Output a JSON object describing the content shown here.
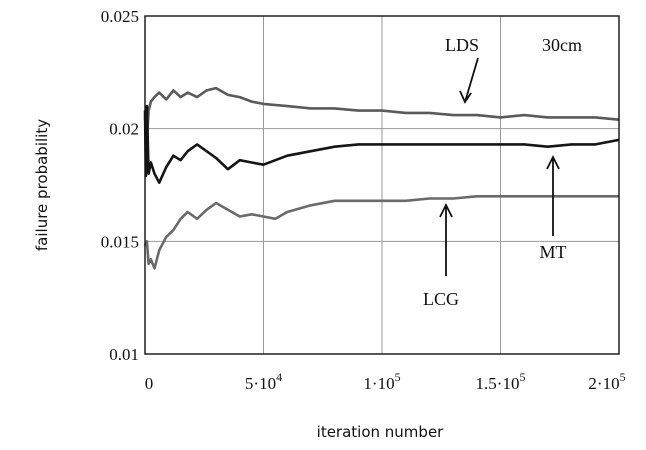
{
  "chart_data": {
    "type": "line",
    "title": "",
    "xlabel": "iteration number",
    "ylabel": "failure probability",
    "xlim": [
      0,
      200000
    ],
    "ylim": [
      0.01,
      0.025
    ],
    "grid": true,
    "x_ticks": [
      {
        "value": 0,
        "label": "0",
        "sup": ""
      },
      {
        "value": 50000,
        "label": "5·10",
        "sup": "4"
      },
      {
        "value": 100000,
        "label": "1·10",
        "sup": "5"
      },
      {
        "value": 150000,
        "label": "1.5·10",
        "sup": "5"
      },
      {
        "value": 200000,
        "label": "2·10",
        "sup": "5"
      }
    ],
    "y_ticks": [
      {
        "value": 0.01,
        "label": "0.01"
      },
      {
        "value": 0.015,
        "label": "0.015"
      },
      {
        "value": 0.02,
        "label": "0.02"
      },
      {
        "value": 0.025,
        "label": "0.025"
      }
    ],
    "series": [
      {
        "name": "LDS",
        "color": "#5a5a5a",
        "x": [
          0,
          800,
          1500,
          2500,
          4000,
          6000,
          9000,
          12000,
          15000,
          18000,
          22000,
          26000,
          30000,
          35000,
          40000,
          45000,
          50000,
          60000,
          70000,
          80000,
          90000,
          100000,
          110000,
          120000,
          130000,
          140000,
          150000,
          160000,
          170000,
          180000,
          190000,
          200000
        ],
        "y": [
          0.0205,
          0.0195,
          0.0208,
          0.0212,
          0.0214,
          0.0216,
          0.0213,
          0.0217,
          0.0214,
          0.0216,
          0.0214,
          0.0217,
          0.0218,
          0.0215,
          0.0214,
          0.0212,
          0.0211,
          0.021,
          0.0209,
          0.0209,
          0.0208,
          0.0208,
          0.0207,
          0.0207,
          0.0206,
          0.0206,
          0.0205,
          0.0206,
          0.0205,
          0.0205,
          0.0205,
          0.0204
        ]
      },
      {
        "name": "MT",
        "color": "#151515",
        "x": [
          0,
          400,
          800,
          1500,
          2500,
          4000,
          6000,
          9000,
          12000,
          15000,
          18000,
          22000,
          26000,
          30000,
          35000,
          40000,
          45000,
          50000,
          60000,
          70000,
          80000,
          90000,
          100000,
          110000,
          120000,
          130000,
          140000,
          150000,
          160000,
          170000,
          180000,
          190000,
          200000
        ],
        "y": [
          0.0208,
          0.0179,
          0.021,
          0.018,
          0.0185,
          0.018,
          0.0176,
          0.0183,
          0.0188,
          0.0186,
          0.019,
          0.0193,
          0.019,
          0.0187,
          0.0182,
          0.0186,
          0.0185,
          0.0184,
          0.0188,
          0.019,
          0.0192,
          0.0193,
          0.0193,
          0.0193,
          0.0193,
          0.0193,
          0.0193,
          0.0193,
          0.0193,
          0.0192,
          0.0193,
          0.0193,
          0.0195
        ]
      },
      {
        "name": "LCG",
        "color": "#6a6a6a",
        "x": [
          0,
          800,
          1500,
          2500,
          4000,
          6000,
          9000,
          12000,
          15000,
          18000,
          22000,
          26000,
          30000,
          35000,
          40000,
          45000,
          50000,
          55000,
          60000,
          70000,
          80000,
          90000,
          100000,
          110000,
          120000,
          130000,
          140000,
          150000,
          160000,
          170000,
          180000,
          190000,
          200000
        ],
        "y": [
          0.0148,
          0.015,
          0.014,
          0.0142,
          0.0138,
          0.0146,
          0.0152,
          0.0155,
          0.016,
          0.0163,
          0.016,
          0.0164,
          0.0167,
          0.0164,
          0.0161,
          0.0162,
          0.0161,
          0.016,
          0.0163,
          0.0166,
          0.0168,
          0.0168,
          0.0168,
          0.0168,
          0.0169,
          0.0169,
          0.017,
          0.017,
          0.017,
          0.017,
          0.017,
          0.017,
          0.017
        ]
      }
    ],
    "annotations": [
      {
        "id": "lds",
        "text": "LDS",
        "arrow_to": {
          "x": 135000,
          "y": 0.0207
        }
      },
      {
        "id": "thickness",
        "text": "30cm"
      },
      {
        "id": "mt",
        "text": "MT",
        "arrow_to": {
          "x": 171000,
          "y": 0.0191
        }
      },
      {
        "id": "lcg",
        "text": "LCG",
        "arrow_to": {
          "x": 127000,
          "y": 0.0169
        }
      }
    ]
  }
}
